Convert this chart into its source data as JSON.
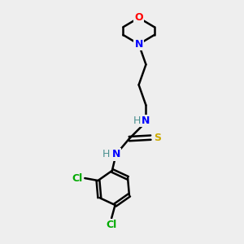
{
  "background_color": "#eeeeee",
  "atom_colors": {
    "C": "#000000",
    "N": "#0000ff",
    "O": "#ff0000",
    "S": "#ccaa00",
    "Cl": "#00aa00",
    "H": "#4a9090"
  },
  "bond_color": "#000000",
  "bond_width": 1.8
}
